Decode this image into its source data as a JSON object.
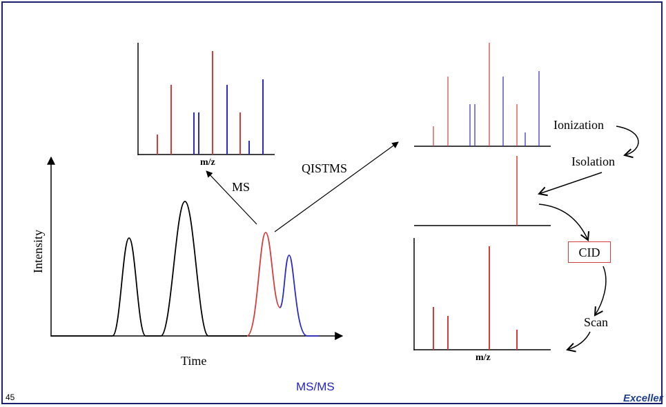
{
  "labels": {
    "ms": "MS",
    "qistms": "QISTMS",
    "ionization": "Ionization",
    "isolation": "Isolation",
    "cid": "CID",
    "scan": "Scan",
    "intensity": "Intensity",
    "time": "Time",
    "mz_top": "m/z",
    "mz_bottom": "m/z",
    "title": "MS/MS",
    "slide_number": "45",
    "logo": "Exceller"
  },
  "colors": {
    "red": "#d63b3b",
    "blue": "#2b2bc4",
    "black": "#000000",
    "frame": "#1c1f6e"
  }
}
